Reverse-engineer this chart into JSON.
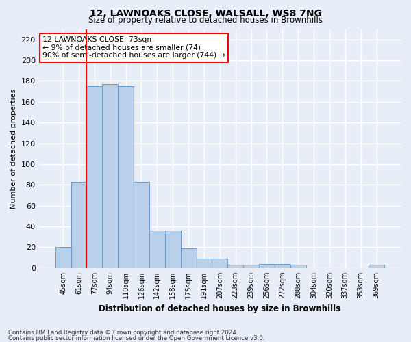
{
  "title": "12, LAWNOAKS CLOSE, WALSALL, WS8 7NG",
  "subtitle": "Size of property relative to detached houses in Brownhills",
  "xlabel": "Distribution of detached houses by size in Brownhills",
  "ylabel": "Number of detached properties",
  "categories": [
    "45sqm",
    "61sqm",
    "77sqm",
    "94sqm",
    "110sqm",
    "126sqm",
    "142sqm",
    "158sqm",
    "175sqm",
    "191sqm",
    "207sqm",
    "223sqm",
    "239sqm",
    "256sqm",
    "272sqm",
    "288sqm",
    "304sqm",
    "320sqm",
    "337sqm",
    "353sqm",
    "369sqm"
  ],
  "values": [
    20,
    83,
    175,
    177,
    175,
    83,
    36,
    36,
    19,
    9,
    9,
    3,
    3,
    4,
    4,
    3,
    0,
    0,
    0,
    0,
    3
  ],
  "bar_color": "#b8d0ea",
  "bar_edge_color": "#6699cc",
  "annotation_box_text": "12 LAWNOAKS CLOSE: 73sqm\n← 9% of detached houses are smaller (74)\n90% of semi-detached houses are larger (744) →",
  "ylim": [
    0,
    230
  ],
  "yticks": [
    0,
    20,
    40,
    60,
    80,
    100,
    120,
    140,
    160,
    180,
    200,
    220
  ],
  "bar_width": 1.0,
  "background_color": "#e8eef8",
  "fig_background_color": "#e8eef8",
  "grid_color": "#ffffff",
  "red_line_x": 1.5,
  "footnote1": "Contains HM Land Registry data © Crown copyright and database right 2024.",
  "footnote2": "Contains public sector information licensed under the Open Government Licence v3.0."
}
